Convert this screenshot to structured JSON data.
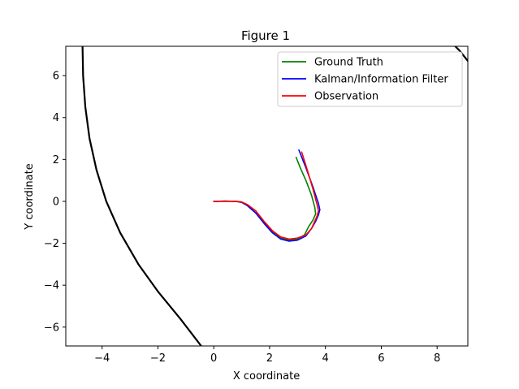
{
  "chart_data": {
    "type": "line",
    "title": "Figure 1",
    "xlabel": "X coordinate",
    "ylabel": "Y coordinate",
    "xlim": [
      -5.3,
      9.1
    ],
    "ylim": [
      -6.9,
      7.4
    ],
    "xticks": [
      -4,
      -2,
      0,
      2,
      4,
      6,
      8
    ],
    "yticks": [
      -6,
      -4,
      -2,
      0,
      2,
      4,
      6
    ],
    "grid": false,
    "legend_position": "top-right",
    "series": [
      {
        "name": "Ground Truth",
        "color": "#008000",
        "x": [
          0,
          0.4,
          0.8,
          1.0,
          1.2,
          1.5,
          1.8,
          2.1,
          2.4,
          2.7,
          3.0,
          3.25,
          3.4,
          3.55,
          3.65,
          3.62,
          3.5,
          3.3,
          3.1,
          2.95
        ],
        "y": [
          0,
          0.01,
          0.0,
          -0.05,
          -0.2,
          -0.55,
          -1.0,
          -1.45,
          -1.75,
          -1.85,
          -1.8,
          -1.6,
          -1.2,
          -0.9,
          -0.6,
          -0.3,
          0.3,
          1.0,
          1.6,
          2.1
        ]
      },
      {
        "name": "Kalman/Information Filter",
        "color": "#0000ff",
        "x": [
          0,
          0.4,
          0.8,
          1.0,
          1.2,
          1.5,
          1.8,
          2.1,
          2.4,
          2.7,
          3.0,
          3.3,
          3.5,
          3.65,
          3.75,
          3.8,
          3.75,
          3.55,
          3.3,
          3.05
        ],
        "y": [
          0,
          0.01,
          0.0,
          -0.05,
          -0.2,
          -0.55,
          -1.05,
          -1.5,
          -1.8,
          -1.9,
          -1.85,
          -1.65,
          -1.3,
          -0.95,
          -0.65,
          -0.4,
          -0.1,
          0.7,
          1.6,
          2.45
        ]
      },
      {
        "name": "Observation",
        "color": "#ff0000",
        "x": [
          0,
          0.4,
          0.8,
          1.0,
          1.2,
          1.5,
          1.8,
          2.1,
          2.4,
          2.7,
          3.0,
          3.3,
          3.5,
          3.6,
          3.7,
          3.75,
          3.7,
          3.55,
          3.35,
          3.15
        ],
        "y": [
          0,
          0.01,
          0.0,
          -0.03,
          -0.15,
          -0.45,
          -0.95,
          -1.4,
          -1.7,
          -1.8,
          -1.75,
          -1.6,
          -1.3,
          -1.0,
          -0.7,
          -0.45,
          -0.15,
          0.6,
          1.5,
          2.35
        ]
      }
    ],
    "boundary_curves": [
      {
        "color": "#000000",
        "x": [
          -4.7,
          -4.68,
          -4.6,
          -4.45,
          -4.2,
          -3.85,
          -3.35,
          -2.7,
          -2.0,
          -1.2,
          -0.45
        ],
        "y": [
          7.4,
          6.0,
          4.5,
          3.0,
          1.5,
          0.0,
          -1.5,
          -3.0,
          -4.3,
          -5.6,
          -6.9
        ]
      },
      {
        "color": "#000000",
        "x": [
          8.65,
          8.8,
          8.95,
          9.1
        ],
        "y": [
          7.4,
          7.2,
          6.95,
          6.7
        ]
      }
    ]
  }
}
